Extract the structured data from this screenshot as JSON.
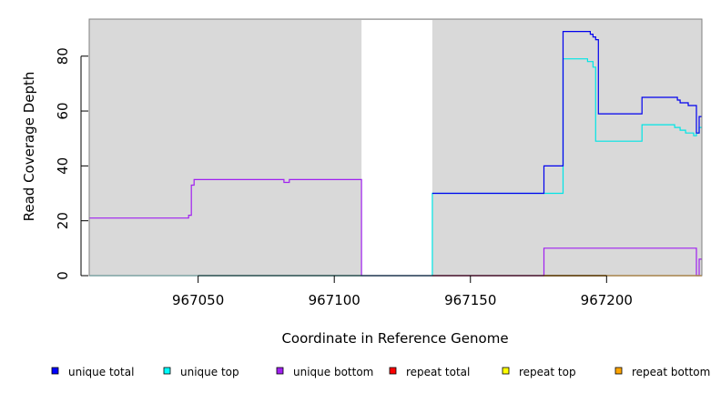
{
  "chart_data": {
    "type": "line",
    "title": "",
    "xlabel": "Coordinate in Reference Genome",
    "ylabel": "Read Coverage Depth",
    "xlim": [
      967010,
      967235
    ],
    "ylim": [
      0,
      93.5
    ],
    "x_ticks": [
      967050,
      967100,
      967150,
      967200
    ],
    "x_tick_labels": [
      "967050",
      "967100",
      "967150",
      "967200"
    ],
    "y_ticks": [
      0,
      20,
      40,
      60,
      80
    ],
    "y_tick_labels": [
      "0",
      "20",
      "40",
      "60",
      "80"
    ],
    "background_color": "#d9d9d9",
    "unshaded_regions": [
      [
        967110,
        967136
      ]
    ],
    "legend_position": "bottom",
    "series": [
      {
        "name": "unique bottom",
        "color": "#a020f0",
        "points": [
          [
            967010,
            21
          ],
          [
            967046.5,
            21
          ],
          [
            967046.5,
            22
          ],
          [
            967047.5,
            22
          ],
          [
            967047.5,
            33
          ],
          [
            967048.5,
            33
          ],
          [
            967048.5,
            35
          ],
          [
            967081.5,
            35
          ],
          [
            967081.5,
            34
          ],
          [
            967083.5,
            34
          ],
          [
            967083.5,
            35
          ],
          [
            967110,
            35
          ],
          [
            967110,
            0
          ],
          [
            967177,
            0
          ],
          [
            967177,
            10
          ],
          [
            967233,
            10
          ],
          [
            967233,
            0
          ],
          [
            967234,
            0
          ],
          [
            967234,
            6
          ],
          [
            967235,
            6
          ]
        ]
      },
      {
        "name": "unique top",
        "color": "#00e5e5",
        "points": [
          [
            967010,
            0
          ],
          [
            967110,
            0
          ],
          [
            967136,
            0
          ],
          [
            967136,
            30
          ],
          [
            967184,
            30
          ],
          [
            967184,
            79
          ],
          [
            967193,
            79
          ],
          [
            967193,
            78
          ],
          [
            967195,
            78
          ],
          [
            967195,
            76
          ],
          [
            967196,
            76
          ],
          [
            967196,
            49
          ],
          [
            967213,
            49
          ],
          [
            967213,
            55
          ],
          [
            967225,
            55
          ],
          [
            967225,
            54
          ],
          [
            967227,
            54
          ],
          [
            967227,
            53
          ],
          [
            967229,
            53
          ],
          [
            967229,
            52
          ],
          [
            967232,
            52
          ],
          [
            967232,
            51
          ],
          [
            967233,
            51
          ],
          [
            967233,
            52
          ],
          [
            967234,
            52
          ],
          [
            967234,
            54
          ],
          [
            967235,
            54
          ]
        ]
      },
      {
        "name": "unique total",
        "color": "#0000ee",
        "points": [
          [
            967136,
            30
          ],
          [
            967177,
            30
          ],
          [
            967177,
            40
          ],
          [
            967184,
            40
          ],
          [
            967184,
            89
          ],
          [
            967194,
            89
          ],
          [
            967194,
            88
          ],
          [
            967195,
            88
          ],
          [
            967195,
            87
          ],
          [
            967196,
            87
          ],
          [
            967196,
            86
          ],
          [
            967197,
            86
          ],
          [
            967197,
            59
          ],
          [
            967213,
            59
          ],
          [
            967213,
            65
          ],
          [
            967226,
            65
          ],
          [
            967226,
            64
          ],
          [
            967227,
            64
          ],
          [
            967227,
            63
          ],
          [
            967230,
            63
          ],
          [
            967230,
            62
          ],
          [
            967233,
            62
          ],
          [
            967233,
            52
          ],
          [
            967234,
            52
          ],
          [
            967234,
            58
          ],
          [
            967235,
            58
          ]
        ]
      },
      {
        "name": "repeat total",
        "color": "#e00000",
        "points": [
          [
            967136,
            0
          ],
          [
            967235,
            0
          ]
        ]
      },
      {
        "name": "repeat top",
        "color": "#f2f200",
        "points": [
          [
            967177,
            0
          ],
          [
            967235,
            0
          ]
        ]
      },
      {
        "name": "repeat bottom",
        "color": "#f5a300",
        "points": [
          [
            967177,
            0
          ],
          [
            967235,
            0
          ]
        ]
      }
    ],
    "legend": [
      {
        "name": "unique total",
        "color": "#0000ff"
      },
      {
        "name": "unique top",
        "color": "#00ffff"
      },
      {
        "name": "unique bottom",
        "color": "#a020f0"
      },
      {
        "name": "repeat total",
        "color": "#ff0000"
      },
      {
        "name": "repeat top",
        "color": "#ffff00"
      },
      {
        "name": "repeat bottom",
        "color": "#ffa500"
      }
    ]
  }
}
